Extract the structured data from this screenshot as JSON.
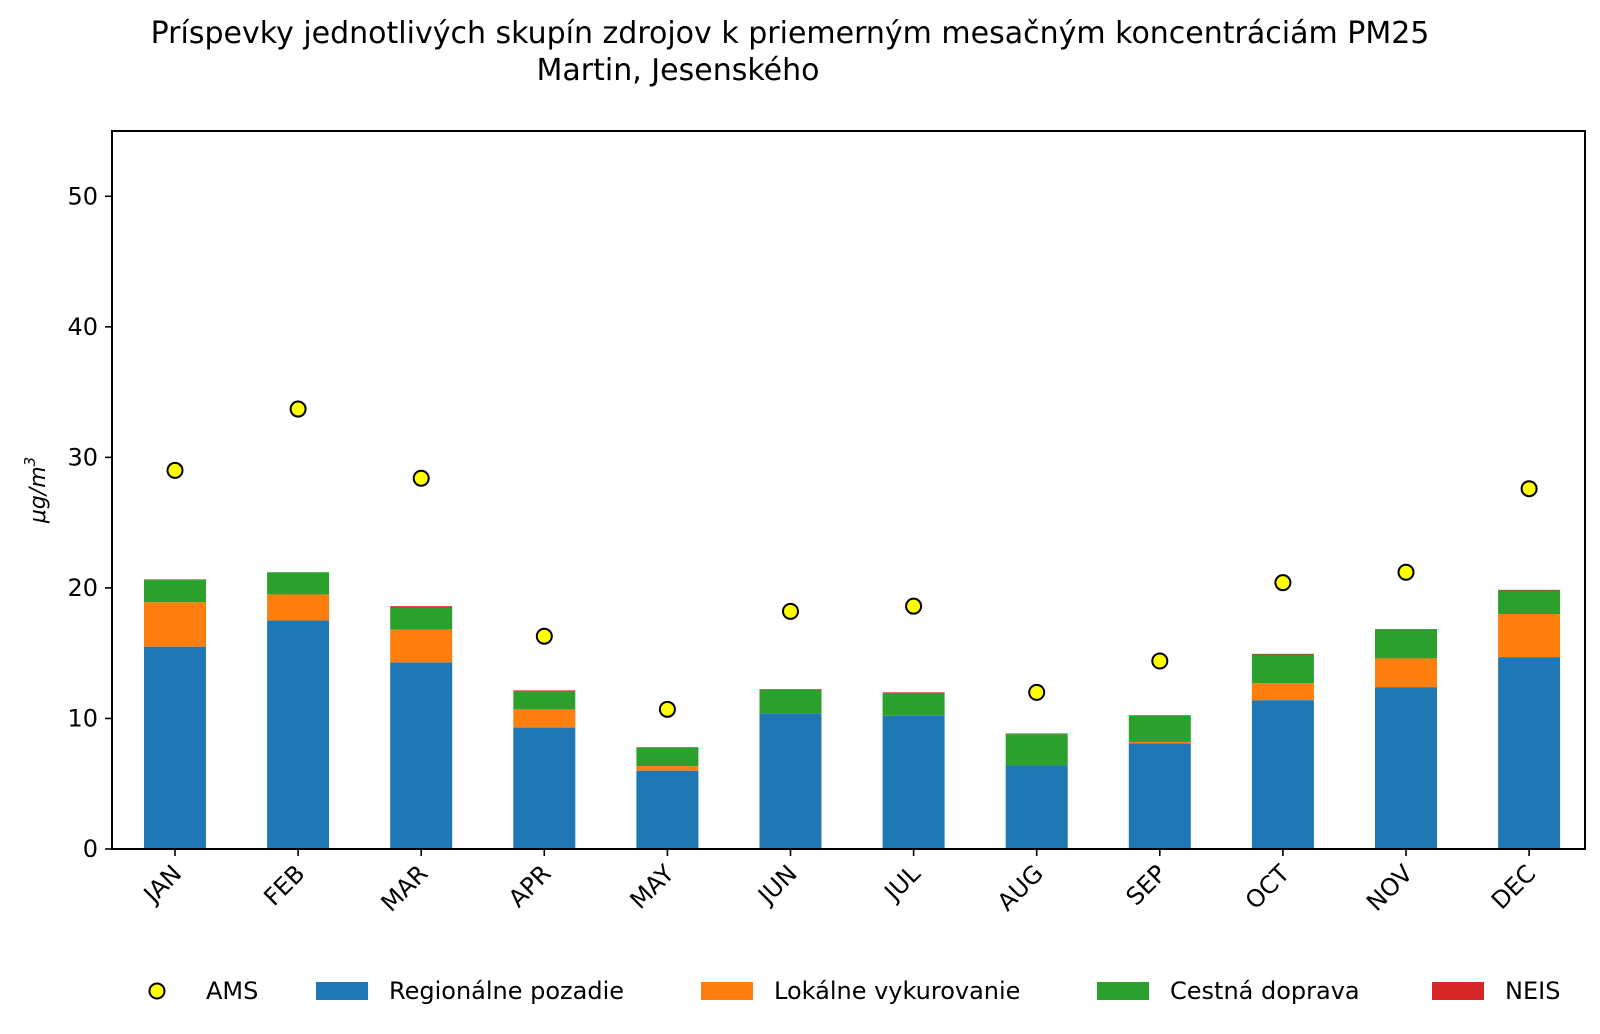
{
  "chart_data": {
    "type": "bar",
    "stacked": true,
    "title": "Príspevky jednotlivých skupín zdrojov k priemerným mesačným koncentráciám PM25",
    "subtitle": "Martin, Jesenského",
    "xlabel": "",
    "ylabel": "μg/m",
    "ylabel_sup": "3",
    "ylim": [
      0,
      55
    ],
    "yticks": [
      0,
      10,
      20,
      30,
      40,
      50
    ],
    "grid": false,
    "legend_position": "bottom",
    "categories": [
      "JAN",
      "FEB",
      "MAR",
      "APR",
      "MAY",
      "JUN",
      "JUL",
      "AUG",
      "SEP",
      "OCT",
      "NOV",
      "DEC"
    ],
    "series": [
      {
        "name": "Regionálne pozadie",
        "color": "#1f77b4",
        "values": [
          15.5,
          17.5,
          14.3,
          9.3,
          6.0,
          10.4,
          10.2,
          6.4,
          8.1,
          11.4,
          12.4,
          14.7
        ]
      },
      {
        "name": "Lokálne vykurovanie",
        "color": "#ff7f0e",
        "values": [
          3.4,
          2.0,
          2.5,
          1.4,
          0.35,
          0.0,
          0.0,
          0.0,
          0.1,
          1.3,
          2.2,
          3.3
        ]
      },
      {
        "name": "Cestná doprava",
        "color": "#2ca02c",
        "values": [
          1.7,
          1.7,
          1.7,
          1.4,
          1.4,
          1.8,
          1.7,
          2.4,
          2.0,
          2.2,
          2.2,
          1.8
        ]
      },
      {
        "name": "NEIS",
        "color": "#d62728",
        "values": [
          0.05,
          0.0,
          0.1,
          0.05,
          0.05,
          0.05,
          0.1,
          0.05,
          0.05,
          0.05,
          0.05,
          0.05
        ]
      }
    ],
    "scatter": {
      "name": "AMS",
      "color": "#ffff00",
      "edge": "#000000",
      "values": [
        29.0,
        33.7,
        28.4,
        16.3,
        10.7,
        18.2,
        18.6,
        12.0,
        14.4,
        20.4,
        21.2,
        27.6
      ]
    }
  }
}
